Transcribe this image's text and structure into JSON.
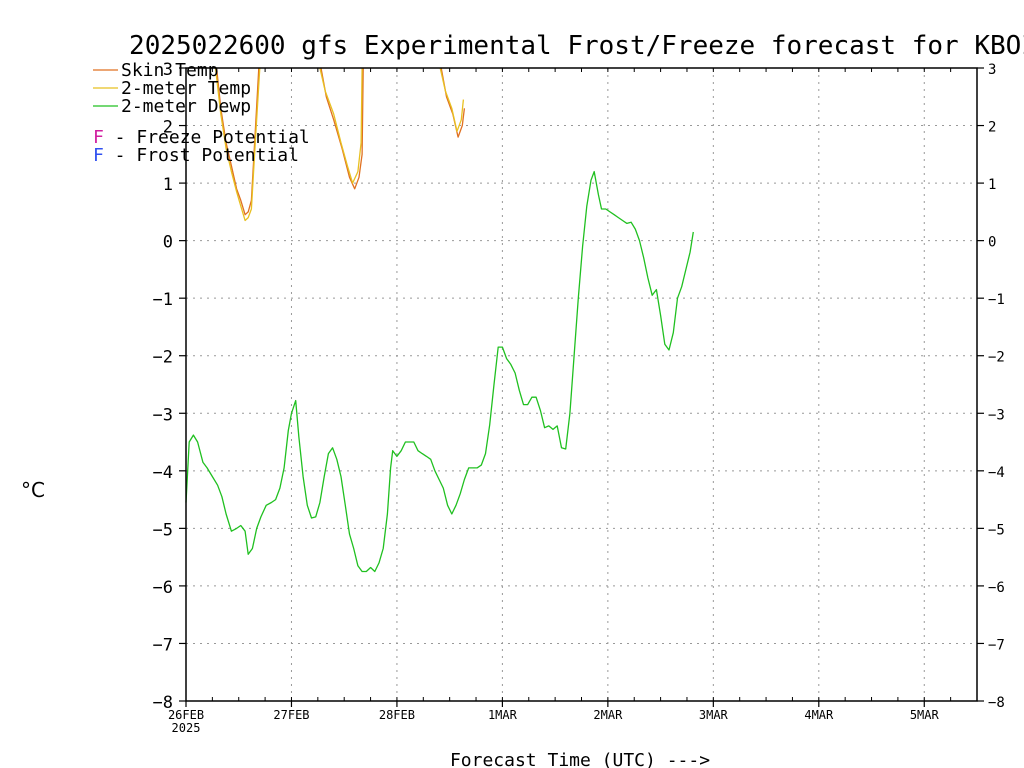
{
  "chart_data": {
    "type": "line",
    "title": "2025022600 gfs Experimental Frost/Freeze forecast for KBOI",
    "xlabel": "Forecast Time (UTC) --->",
    "ylabel": "°C",
    "ylim": [
      -8,
      3
    ],
    "xlim_days": [
      0,
      7.5
    ],
    "y_ticks": [
      -8,
      -7,
      -6,
      -5,
      -4,
      -3,
      -2,
      -1,
      0,
      1,
      2,
      3
    ],
    "x_ticks": [
      {
        "day": 0,
        "label": "26FEB",
        "sublabel": "2025"
      },
      {
        "day": 1,
        "label": "27FEB"
      },
      {
        "day": 2,
        "label": "28FEB"
      },
      {
        "day": 3,
        "label": "1MAR"
      },
      {
        "day": 4,
        "label": "2MAR"
      },
      {
        "day": 5,
        "label": "3MAR"
      },
      {
        "day": 6,
        "label": "4MAR"
      },
      {
        "day": 7,
        "label": "5MAR"
      }
    ],
    "grid": true,
    "legend": [
      {
        "label": "Skin Temp",
        "color": "#e07020"
      },
      {
        "label": "2-meter Temp",
        "color": "#e8c020"
      },
      {
        "label": "2-meter Dewp",
        "color": "#20c020"
      }
    ],
    "legend_markers": [
      {
        "mark": "F",
        "label": " - Freeze Potential",
        "color": "#d020a0"
      },
      {
        "mark": "F",
        "label": " - Frost Potential",
        "color": "#3050f0"
      }
    ],
    "series": [
      {
        "name": "Skin Temp",
        "color": "#e07020",
        "segments": [
          [
            [
              0.29,
              3.0
            ],
            [
              0.33,
              2.3
            ],
            [
              0.38,
              1.7
            ],
            [
              0.43,
              1.3
            ],
            [
              0.48,
              0.9
            ],
            [
              0.52,
              0.7
            ],
            [
              0.56,
              0.45
            ],
            [
              0.59,
              0.5
            ],
            [
              0.62,
              0.7
            ],
            [
              0.66,
              2.0
            ],
            [
              0.69,
              3.0
            ]
          ],
          [
            [
              1.28,
              3.0
            ],
            [
              1.33,
              2.5
            ],
            [
              1.4,
              2.1
            ],
            [
              1.48,
              1.6
            ],
            [
              1.55,
              1.1
            ],
            [
              1.6,
              0.9
            ],
            [
              1.64,
              1.1
            ],
            [
              1.67,
              1.5
            ],
            [
              1.68,
              3.0
            ]
          ],
          [
            [
              2.42,
              3.0
            ],
            [
              2.47,
              2.5
            ],
            [
              2.53,
              2.2
            ],
            [
              2.58,
              1.8
            ],
            [
              2.62,
              2.0
            ],
            [
              2.64,
              2.3
            ]
          ]
        ]
      },
      {
        "name": "2-meter Temp",
        "color": "#e8c020",
        "segments": [
          [
            [
              0.28,
              3.0
            ],
            [
              0.33,
              2.2
            ],
            [
              0.38,
              1.6
            ],
            [
              0.43,
              1.2
            ],
            [
              0.48,
              0.85
            ],
            [
              0.52,
              0.6
            ],
            [
              0.56,
              0.35
            ],
            [
              0.59,
              0.4
            ],
            [
              0.62,
              0.55
            ],
            [
              0.66,
              1.8
            ],
            [
              0.7,
              3.0
            ]
          ],
          [
            [
              1.27,
              3.0
            ],
            [
              1.32,
              2.6
            ],
            [
              1.4,
              2.2
            ],
            [
              1.47,
              1.7
            ],
            [
              1.53,
              1.3
            ],
            [
              1.58,
              1.0
            ],
            [
              1.63,
              1.2
            ],
            [
              1.66,
              1.7
            ],
            [
              1.67,
              3.0
            ]
          ],
          [
            [
              2.41,
              3.0
            ],
            [
              2.46,
              2.6
            ],
            [
              2.52,
              2.3
            ],
            [
              2.57,
              1.9
            ],
            [
              2.61,
              2.1
            ],
            [
              2.63,
              2.45
            ]
          ]
        ]
      },
      {
        "name": "2-meter Dewp",
        "color": "#20c020",
        "segments": [
          [
            [
              0.0,
              -4.55
            ],
            [
              0.03,
              -3.5
            ],
            [
              0.07,
              -3.38
            ],
            [
              0.11,
              -3.5
            ],
            [
              0.16,
              -3.85
            ],
            [
              0.2,
              -3.95
            ],
            [
              0.25,
              -4.1
            ],
            [
              0.3,
              -4.25
            ],
            [
              0.34,
              -4.45
            ],
            [
              0.38,
              -4.75
            ],
            [
              0.43,
              -5.05
            ],
            [
              0.48,
              -5.0
            ],
            [
              0.52,
              -4.95
            ],
            [
              0.56,
              -5.05
            ],
            [
              0.59,
              -5.45
            ],
            [
              0.63,
              -5.35
            ],
            [
              0.67,
              -5.0
            ],
            [
              0.71,
              -4.8
            ],
            [
              0.76,
              -4.6
            ],
            [
              0.81,
              -4.55
            ],
            [
              0.85,
              -4.5
            ],
            [
              0.89,
              -4.3
            ],
            [
              0.93,
              -3.95
            ],
            [
              0.97,
              -3.3
            ],
            [
              1.0,
              -3.0
            ],
            [
              1.04,
              -2.78
            ],
            [
              1.07,
              -3.4
            ],
            [
              1.11,
              -4.1
            ],
            [
              1.15,
              -4.6
            ],
            [
              1.19,
              -4.82
            ],
            [
              1.23,
              -4.8
            ],
            [
              1.27,
              -4.55
            ],
            [
              1.31,
              -4.1
            ],
            [
              1.35,
              -3.7
            ],
            [
              1.39,
              -3.6
            ],
            [
              1.43,
              -3.8
            ],
            [
              1.47,
              -4.1
            ],
            [
              1.51,
              -4.6
            ],
            [
              1.55,
              -5.1
            ],
            [
              1.59,
              -5.35
            ],
            [
              1.63,
              -5.65
            ],
            [
              1.67,
              -5.75
            ],
            [
              1.71,
              -5.75
            ],
            [
              1.75,
              -5.68
            ],
            [
              1.79,
              -5.75
            ],
            [
              1.83,
              -5.6
            ],
            [
              1.87,
              -5.35
            ],
            [
              1.91,
              -4.75
            ],
            [
              1.94,
              -3.95
            ],
            [
              1.96,
              -3.65
            ],
            [
              2.0,
              -3.75
            ],
            [
              2.04,
              -3.65
            ],
            [
              2.08,
              -3.5
            ],
            [
              2.12,
              -3.5
            ],
            [
              2.16,
              -3.5
            ],
            [
              2.2,
              -3.65
            ],
            [
              2.24,
              -3.7
            ],
            [
              2.28,
              -3.75
            ],
            [
              2.32,
              -3.8
            ],
            [
              2.36,
              -4.0
            ],
            [
              2.4,
              -4.15
            ],
            [
              2.44,
              -4.3
            ],
            [
              2.48,
              -4.6
            ],
            [
              2.52,
              -4.75
            ],
            [
              2.56,
              -4.6
            ],
            [
              2.6,
              -4.4
            ],
            [
              2.64,
              -4.15
            ],
            [
              2.68,
              -3.95
            ],
            [
              2.72,
              -3.95
            ],
            [
              2.76,
              -3.95
            ],
            [
              2.8,
              -3.9
            ],
            [
              2.84,
              -3.7
            ],
            [
              2.88,
              -3.2
            ],
            [
              2.92,
              -2.5
            ],
            [
              2.96,
              -1.85
            ],
            [
              3.0,
              -1.85
            ],
            [
              3.04,
              -2.05
            ],
            [
              3.08,
              -2.15
            ],
            [
              3.12,
              -2.3
            ],
            [
              3.16,
              -2.6
            ],
            [
              3.2,
              -2.85
            ],
            [
              3.24,
              -2.85
            ],
            [
              3.28,
              -2.72
            ],
            [
              3.32,
              -2.72
            ],
            [
              3.36,
              -2.95
            ],
            [
              3.4,
              -3.25
            ],
            [
              3.44,
              -3.22
            ],
            [
              3.48,
              -3.28
            ],
            [
              3.52,
              -3.22
            ],
            [
              3.56,
              -3.6
            ],
            [
              3.6,
              -3.62
            ],
            [
              3.64,
              -3.0
            ],
            [
              3.68,
              -2.0
            ],
            [
              3.72,
              -1.0
            ],
            [
              3.76,
              -0.1
            ],
            [
              3.8,
              0.6
            ],
            [
              3.84,
              1.05
            ],
            [
              3.87,
              1.2
            ],
            [
              3.91,
              0.8
            ],
            [
              3.94,
              0.55
            ],
            [
              3.98,
              0.55
            ],
            [
              4.02,
              0.5
            ],
            [
              4.06,
              0.45
            ],
            [
              4.1,
              0.4
            ],
            [
              4.14,
              0.35
            ],
            [
              4.18,
              0.3
            ],
            [
              4.22,
              0.32
            ],
            [
              4.26,
              0.2
            ],
            [
              4.3,
              0.0
            ],
            [
              4.34,
              -0.3
            ],
            [
              4.38,
              -0.65
            ],
            [
              4.42,
              -0.95
            ],
            [
              4.46,
              -0.85
            ],
            [
              4.5,
              -1.3
            ],
            [
              4.54,
              -1.8
            ],
            [
              4.58,
              -1.9
            ],
            [
              4.62,
              -1.6
            ],
            [
              4.66,
              -1.0
            ],
            [
              4.7,
              -0.8
            ],
            [
              4.74,
              -0.5
            ],
            [
              4.78,
              -0.2
            ],
            [
              4.81,
              0.15
            ]
          ]
        ]
      }
    ]
  }
}
